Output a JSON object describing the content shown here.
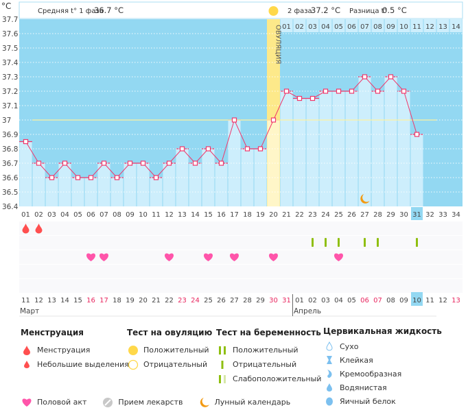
{
  "header": {
    "unit": "°C",
    "phase1_label": "Средняя t° 1 фаза",
    "phase1_value": "36.7 °C",
    "phase2_label": "2 фаза",
    "phase2_value": "37.2 °C",
    "diff_label": "Разница t°",
    "diff_value": "0.5 °C",
    "ovulation_label": "ОВУЛЯЦИЯ"
  },
  "chart_data": {
    "type": "bar",
    "ylabel": "°C",
    "ylim": [
      36.4,
      37.7
    ],
    "yticks": [
      "36.4",
      "36.5",
      "36.6",
      "36.7",
      "36.8",
      "36.9",
      "37",
      "37.1",
      "37.2",
      "37.3",
      "37.4",
      "37.5",
      "37.6",
      "37.7"
    ],
    "grid": true,
    "cycle_days": [
      "01",
      "02",
      "03",
      "04",
      "05",
      "06",
      "07",
      "08",
      "09",
      "10",
      "11",
      "12",
      "13",
      "14",
      "15",
      "16",
      "17",
      "18",
      "19",
      "20",
      "21",
      "22",
      "23",
      "24",
      "25",
      "26",
      "27",
      "28",
      "29",
      "30",
      "31",
      "32",
      "33",
      "34"
    ],
    "temperatures": [
      36.85,
      36.7,
      36.6,
      36.7,
      36.6,
      36.6,
      36.7,
      36.6,
      36.7,
      36.7,
      36.6,
      36.7,
      36.8,
      36.7,
      36.8,
      36.7,
      37.0,
      36.8,
      36.8,
      37.0,
      37.2,
      37.15,
      37.15,
      37.2,
      37.2,
      37.2,
      37.3,
      37.2,
      37.3,
      37.2,
      36.9
    ],
    "coverline": 37.0,
    "ovulation_day": 20,
    "current_day": 31,
    "phase2_days": [
      "01",
      "02",
      "03",
      "04",
      "05",
      "06",
      "07",
      "08",
      "09",
      "10",
      "11",
      "12",
      "13",
      "14"
    ],
    "dates": [
      "11",
      "12",
      "13",
      "14",
      "15",
      "16",
      "17",
      "18",
      "19",
      "20",
      "21",
      "22",
      "23",
      "24",
      "25",
      "26",
      "27",
      "28",
      "29",
      "30",
      "31",
      "01",
      "02",
      "03",
      "04",
      "05",
      "06",
      "07",
      "08",
      "09",
      "10",
      "11",
      "12",
      "13"
    ],
    "weekend_days": [
      6,
      7,
      13,
      14,
      20,
      21,
      27,
      28,
      34
    ],
    "months": [
      {
        "label": "Март",
        "start_day": 1
      },
      {
        "label": "Апрель",
        "start_day": 22
      }
    ],
    "menstruation_days": [
      1,
      2
    ],
    "pregnancy_test_days": [
      23,
      24,
      25,
      27,
      28,
      31
    ],
    "intercourse_days": [
      6,
      7,
      12,
      15,
      17,
      20,
      25
    ],
    "moon_day": 27
  },
  "colors": {
    "plot_bg": "#93d8f2",
    "bar": "#cdeefc",
    "line": "#f0366a",
    "ovulation": "#fde98a",
    "coverline": "#fff3a0",
    "weekend": "#e8265f",
    "test": "#8fbf10",
    "heart": "#ff55aa",
    "drop": "#ff4f4f",
    "moon": "#f39a12"
  },
  "legend": {
    "menstruation": {
      "title": "Менструация",
      "items": [
        "Менструация",
        "Небольшие выделения"
      ]
    },
    "ovulation_test": {
      "title": "Тест на овуляцию",
      "items": [
        "Положительный",
        "Отрицательный"
      ]
    },
    "pregnancy_test": {
      "title": "Тест на беременность",
      "items": [
        "Положительный",
        "Отрицательный",
        "Слабоположительный"
      ]
    },
    "cervical": {
      "title": "Цервикальная жидкость",
      "items": [
        "Сухо",
        "Клейкая",
        "Кремообразная",
        "Водянистая",
        "Яичный белок"
      ]
    },
    "bottom": [
      "Половой акт",
      "Прием лекарств",
      "Лунный календарь"
    ]
  }
}
